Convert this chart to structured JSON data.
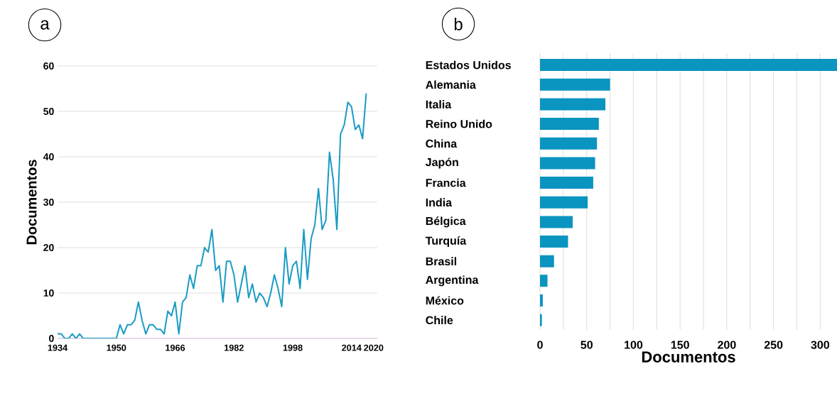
{
  "chart_data": [
    {
      "type": "line",
      "title": "a",
      "ylabel": "Documentos",
      "x": [
        1934,
        1935,
        1936,
        1937,
        1938,
        1939,
        1940,
        1941,
        1942,
        1943,
        1944,
        1945,
        1946,
        1947,
        1948,
        1949,
        1950,
        1951,
        1952,
        1953,
        1954,
        1955,
        1956,
        1957,
        1958,
        1959,
        1960,
        1961,
        1962,
        1963,
        1964,
        1965,
        1966,
        1967,
        1968,
        1969,
        1970,
        1971,
        1972,
        1973,
        1974,
        1975,
        1976,
        1977,
        1978,
        1979,
        1980,
        1981,
        1982,
        1983,
        1984,
        1985,
        1986,
        1987,
        1988,
        1989,
        1990,
        1991,
        1992,
        1993,
        1994,
        1995,
        1996,
        1997,
        1998,
        1999,
        2000,
        2001,
        2002,
        2003,
        2004,
        2005,
        2006,
        2007,
        2008,
        2009,
        2010,
        2011,
        2012,
        2013,
        2014,
        2015,
        2016,
        2017,
        2018
      ],
      "values": [
        1,
        1,
        0,
        0,
        1,
        0,
        1,
        0,
        0,
        0,
        0,
        0,
        0,
        0,
        0,
        0,
        0,
        3,
        1,
        3,
        3,
        4,
        8,
        4,
        1,
        3,
        3,
        2,
        2,
        1,
        6,
        5,
        8,
        1,
        8,
        9,
        14,
        11,
        16,
        16,
        20,
        19,
        24,
        15,
        16,
        8,
        17,
        17,
        14,
        8,
        12,
        16,
        9,
        12,
        8,
        10,
        9,
        7,
        10,
        14,
        11,
        7,
        20,
        12,
        16,
        17,
        11,
        24,
        13,
        22,
        25,
        33,
        24,
        26,
        41,
        35,
        24,
        45,
        47,
        52,
        51,
        46,
        47,
        44,
        54
      ],
      "color": "#1a9bc4",
      "xlim": [
        1934,
        2021
      ],
      "ylim": [
        0,
        60
      ],
      "xticks": [
        1934,
        1950,
        1966,
        1982,
        1998,
        2014,
        2020
      ],
      "yticks": [
        0,
        10,
        20,
        30,
        40,
        50,
        60
      ],
      "grid": "y"
    },
    {
      "type": "bar",
      "title": "b",
      "xlabel": "Documentos",
      "orientation": "horizontal",
      "categories": [
        "Estados Unidos",
        "Alemania",
        "Italia",
        "Reino Unido",
        "China",
        "Japón",
        "Francia",
        "India",
        "Bélgica",
        "Turquía",
        "Brasil",
        "Argentina",
        "México",
        "Chile"
      ],
      "values": [
        318,
        75,
        70,
        63,
        61,
        59,
        57,
        51,
        35,
        30,
        15,
        8,
        3,
        2
      ],
      "color": "#0a94c0",
      "xlim": [
        0,
        318
      ],
      "xticks": [
        0,
        {
          "value": 25,
          "label": null
        },
        50,
        {
          "value": 75,
          "label": null
        },
        100,
        {
          "value": 125,
          "label": null
        },
        150,
        {
          "value": 175,
          "label": null
        },
        200,
        {
          "value": 225,
          "label": null
        },
        250,
        {
          "value": 275,
          "label": null
        },
        300
      ],
      "grid": "x"
    }
  ]
}
